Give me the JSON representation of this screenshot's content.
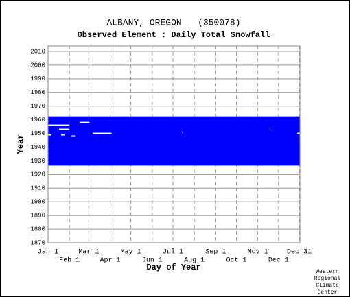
{
  "chart_data": {
    "type": "availability",
    "title": "ALBANY, OREGON   (350078)",
    "subtitle": "Observed Element : Daily Total Snowfall",
    "x_label": "Day of Year",
    "y_label": "Year",
    "credit": [
      "Western",
      "Regional",
      "Climate",
      "Center"
    ],
    "color": "#0000ff",
    "grid": true,
    "xlim": [
      1,
      366
    ],
    "ylim": [
      1870,
      2014
    ],
    "yticks": [
      1870,
      1880,
      1890,
      1900,
      1910,
      1920,
      1930,
      1940,
      1950,
      1960,
      1970,
      1980,
      1990,
      2000,
      2010
    ],
    "xticks": [
      {
        "value": 1,
        "label": "Jan 1"
      },
      {
        "value": 32,
        "label": "Feb 1"
      },
      {
        "value": 60,
        "label": "Mar 1"
      },
      {
        "value": 91,
        "label": "Apr 1"
      },
      {
        "value": 121,
        "label": "May 1"
      },
      {
        "value": 152,
        "label": "Jun 1"
      },
      {
        "value": 182,
        "label": "Jul 1"
      },
      {
        "value": 213,
        "label": "Aug 1"
      },
      {
        "value": 244,
        "label": "Sep 1"
      },
      {
        "value": 274,
        "label": "Oct 1"
      },
      {
        "value": 305,
        "label": "Nov 1"
      },
      {
        "value": 335,
        "label": "Dec 1"
      },
      {
        "value": 365,
        "label": "Dec 31"
      }
    ],
    "data_range": {
      "year_start": 1927,
      "year_end": 1962,
      "day_start": 1,
      "day_end": 365
    },
    "missing": [
      {
        "year": 1956,
        "day_start": 1,
        "day_end": 31
      },
      {
        "year": 1953,
        "day_start": 17,
        "day_end": 31
      },
      {
        "year": 1949,
        "day_start": 20,
        "day_end": 24
      },
      {
        "year": 1948,
        "day_start": 35,
        "day_end": 40
      },
      {
        "year": 1958,
        "day_start": 47,
        "day_end": 60
      },
      {
        "year": 1950,
        "day_start": 66,
        "day_end": 92
      },
      {
        "year": 1951,
        "day_start": 195,
        "day_end": 195
      },
      {
        "year": 1954,
        "day_start": 322,
        "day_end": 322
      },
      {
        "year": 1950,
        "day_start": 362,
        "day_end": 365
      },
      {
        "year": 1949,
        "day_start": 1,
        "day_end": 5
      }
    ]
  }
}
